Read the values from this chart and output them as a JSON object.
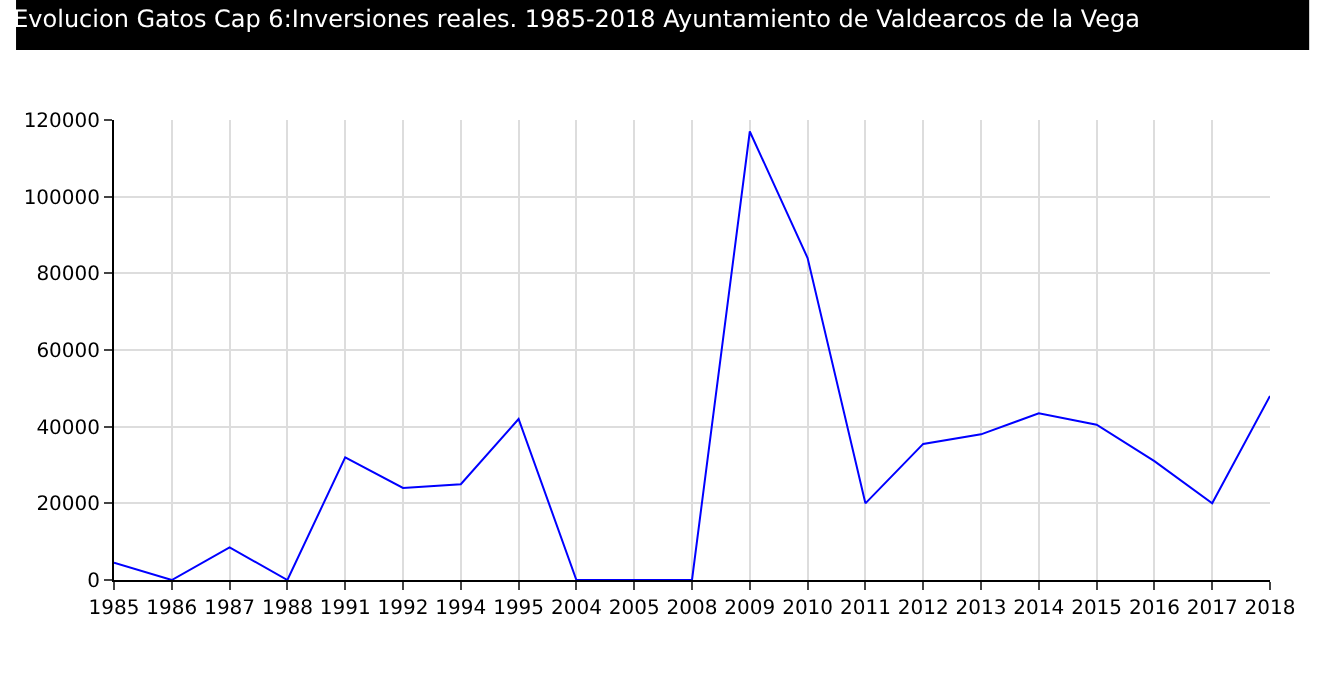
{
  "chart_data": {
    "type": "line",
    "title": "Evolucion Gatos Cap 6:Inversiones reales. 1985-2018 Ayuntamiento de Valdearcos de la Vega",
    "categories": [
      "1985",
      "1986",
      "1987",
      "1988",
      "1991",
      "1992",
      "1994",
      "1995",
      "2004",
      "2005",
      "2008",
      "2009",
      "2010",
      "2011",
      "2012",
      "2013",
      "2014",
      "2015",
      "2016",
      "2017",
      "2018"
    ],
    "series": [
      {
        "color": "#0000ff",
        "values": [
          4500,
          0,
          8500,
          0,
          32000,
          24000,
          25000,
          42000,
          0,
          0,
          0,
          117000,
          84000,
          20000,
          35500,
          38000,
          43500,
          40500,
          31000,
          20000,
          48000
        ]
      }
    ],
    "ylim": [
      0,
      120000
    ],
    "yticks": [
      0,
      20000,
      40000,
      60000,
      80000,
      100000,
      120000
    ],
    "grid": true,
    "marker": "none",
    "line_style": "solid"
  }
}
